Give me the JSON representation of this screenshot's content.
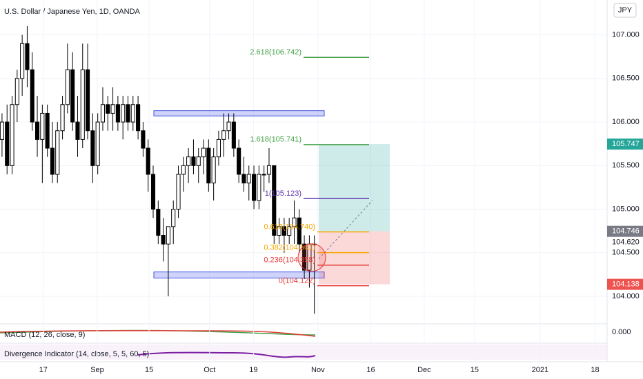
{
  "chart_data": {
    "type": "candlestick",
    "title": "U.S. Dollar / Japanese Yen, 1D, OANDA",
    "currency": "JPY",
    "open": [
      105.8,
      106.0,
      105.5,
      106.2,
      106.5,
      106.9,
      106.6,
      106.0,
      105.8,
      106.1,
      105.7,
      105.4,
      105.9,
      106.2,
      106.6,
      106.0,
      105.8,
      106.6,
      105.9,
      105.5,
      106.0,
      106.2,
      106.1,
      106.2,
      106.0,
      106.2,
      106.0,
      106.2,
      105.9,
      105.7,
      105.4,
      105.0,
      104.7,
      104.6,
      104.8,
      105.0,
      105.4,
      105.5,
      105.6,
      105.5,
      105.6,
      105.7,
      105.3,
      105.6,
      105.8,
      105.9,
      106.0,
      105.7,
      105.4,
      105.3,
      105.4,
      105.1,
      105.4,
      105.4,
      105.5,
      104.7,
      104.8,
      104.7,
      104.8,
      104.9,
      104.6,
      104.3,
      104.6
    ],
    "high": [
      106.1,
      106.2,
      106.3,
      106.6,
      107.0,
      107.1,
      106.8,
      106.3,
      106.2,
      106.2,
      106.0,
      106.0,
      106.3,
      106.9,
      106.8,
      106.3,
      106.9,
      106.9,
      106.1,
      106.1,
      106.4,
      106.3,
      106.4,
      106.3,
      106.3,
      106.3,
      106.3,
      106.3,
      106.0,
      105.8,
      105.5,
      105.1,
      104.9,
      104.8,
      105.1,
      105.5,
      105.6,
      105.7,
      105.8,
      105.7,
      105.8,
      105.8,
      105.7,
      105.9,
      106.1,
      106.1,
      106.1,
      105.8,
      105.6,
      105.5,
      105.5,
      105.5,
      105.5,
      105.7,
      105.5,
      104.9,
      104.9,
      104.9,
      105.1,
      105.0,
      104.7,
      104.7,
      104.7
    ],
    "low": [
      105.6,
      105.4,
      105.4,
      106.0,
      106.3,
      106.4,
      105.9,
      105.6,
      105.3,
      105.6,
      105.3,
      105.3,
      105.8,
      106.1,
      105.9,
      105.6,
      105.7,
      105.8,
      105.3,
      105.4,
      105.9,
      105.9,
      105.9,
      105.9,
      105.8,
      105.9,
      105.9,
      105.8,
      105.6,
      105.2,
      104.9,
      104.6,
      104.4,
      104.0,
      104.6,
      104.9,
      105.2,
      105.3,
      105.4,
      105.3,
      105.4,
      105.2,
      105.1,
      105.5,
      105.6,
      105.8,
      105.6,
      105.3,
      105.2,
      105.1,
      105.0,
      105.0,
      105.2,
      105.3,
      104.6,
      104.6,
      104.5,
      104.6,
      104.6,
      104.5,
      104.2,
      104.1,
      103.8
    ],
    "close": [
      106.0,
      105.5,
      106.2,
      106.5,
      106.9,
      106.6,
      106.0,
      105.8,
      106.1,
      105.7,
      105.4,
      105.9,
      106.2,
      106.6,
      106.0,
      105.8,
      106.6,
      105.9,
      105.5,
      106.0,
      106.2,
      106.1,
      106.2,
      106.0,
      106.2,
      106.0,
      106.2,
      105.9,
      105.7,
      105.4,
      105.0,
      104.7,
      104.6,
      104.8,
      105.0,
      105.4,
      105.5,
      105.6,
      105.5,
      105.6,
      105.7,
      105.3,
      105.6,
      105.8,
      105.9,
      106.0,
      105.7,
      105.4,
      105.3,
      105.4,
      105.1,
      105.4,
      105.4,
      105.5,
      104.7,
      104.8,
      104.7,
      104.8,
      104.9,
      104.6,
      104.3,
      104.6,
      104.6
    ],
    "xlim": [
      -0.4,
      120.1
    ],
    "xticks": [
      {
        "value": 8.2,
        "label": "17"
      },
      {
        "value": 18.9,
        "label": "Sep"
      },
      {
        "value": 29.2,
        "label": "15"
      },
      {
        "value": 41.2,
        "label": "Oct"
      },
      {
        "value": 49.9,
        "label": "19"
      },
      {
        "value": 62.7,
        "label": "Nov"
      },
      {
        "value": 73.2,
        "label": "16"
      },
      {
        "value": 83.8,
        "label": "Dec"
      },
      {
        "value": 93.8,
        "label": "15"
      },
      {
        "value": 106.8,
        "label": "2021"
      },
      {
        "value": 117.7,
        "label": "18"
      }
    ],
    "ylim": [
      103.7,
      107.4
    ],
    "yticks": [
      {
        "value": 107,
        "label": "107.000"
      },
      {
        "value": 106.5,
        "label": "106.500"
      },
      {
        "value": 106,
        "label": "106.000"
      },
      {
        "value": 105.5,
        "label": "105.500"
      },
      {
        "value": 105,
        "label": "105.000"
      },
      {
        "value": 104.5,
        "label": "104.500"
      },
      {
        "value": 104,
        "label": "104.000"
      }
    ],
    "badges": [
      {
        "value": 105.747,
        "label": "105.747",
        "color": "#26a69a"
      },
      {
        "value": 104.746,
        "label": "104.746",
        "color": "#787b86"
      },
      {
        "value": 104.62,
        "label": "104.620",
        "color": "none"
      },
      {
        "value": 104.138,
        "label": "104.138",
        "color": "#ef5350"
      }
    ],
    "fib": [
      {
        "price": 106.742,
        "label": "2.618(106.742)",
        "color": "#43a047"
      },
      {
        "price": 105.741,
        "label": "1.618(105.741)",
        "color": "#43a047"
      },
      {
        "price": 105.123,
        "label": "1(105.123)",
        "color": "#5e35b1"
      },
      {
        "price": 104.74,
        "label": "0.618(104.740)",
        "color": "#f5a700"
      },
      {
        "price": 104.501,
        "label": "0.382(104.501)",
        "color": "#f5a700"
      },
      {
        "price": 104.358,
        "label": "0.236(104.358)",
        "color": "#e53935"
      },
      {
        "price": 104.122,
        "label": "0(104.122)",
        "color": "#e53935"
      }
    ],
    "zones": [
      {
        "top": 106.13,
        "bottom": 106.07
      },
      {
        "top": 104.28,
        "bottom": 104.21
      }
    ],
    "macd_label": "MACD (12, 26, close, 9)",
    "macd_zero": "0.000",
    "divergence_label": "Divergence Indicator (14, close, 5, 5, 60, 5)"
  }
}
